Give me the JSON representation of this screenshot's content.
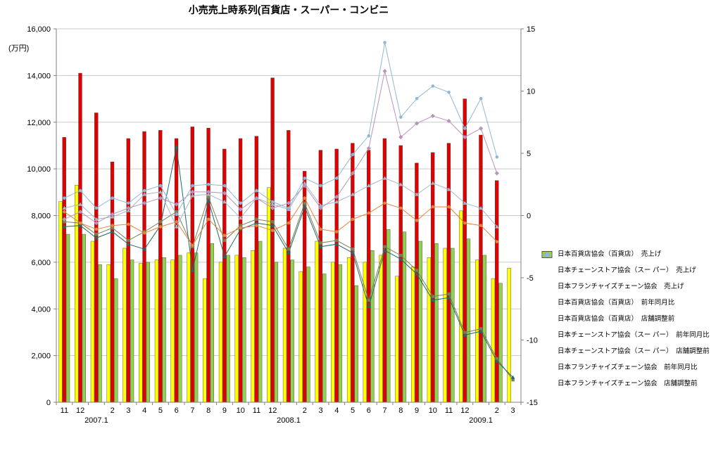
{
  "title": "小売売上時系列(百貨店・スーパー・コンビニ",
  "axis": {
    "left_unit": "(万円)",
    "left_tick_values": [
      0,
      2000,
      4000,
      6000,
      8000,
      10000,
      12000,
      14000,
      16000
    ],
    "left_tick_labels": [
      "0",
      "2,000",
      "4,000",
      "6,000",
      "8,000",
      "10,000",
      "12,000",
      "14,000",
      "16,000"
    ],
    "right_tick_values": [
      15,
      10,
      5,
      0,
      -5,
      -10,
      -15
    ],
    "right_tick_labels": [
      "15",
      "10",
      "5",
      "0",
      "-5",
      "-10",
      "-15"
    ],
    "left_min": 0,
    "left_max": 16000,
    "right_min": -15,
    "right_max": 15
  },
  "chart_data": {
    "type": "bar",
    "subtype": "grouped-bar with 6 overlay lines on secondary axis",
    "title": "小売売上時系列(百貨店・スーパー・コンビニ",
    "ylabel_left": "(万円)",
    "ylim_left": [
      0,
      16000
    ],
    "ylim_right": [
      -15,
      15
    ],
    "grid": "horizontal, every 2000",
    "legend_position": "right",
    "categories": [
      "11",
      "12",
      "2007.1",
      "2",
      "3",
      "4",
      "5",
      "6",
      "7",
      "8",
      "9",
      "10",
      "11",
      "12",
      "2008.1",
      "2",
      "3",
      "4",
      "5",
      "6",
      "7",
      "8",
      "9",
      "10",
      "11",
      "12",
      "2009.1",
      "2",
      "3"
    ],
    "bar_series": [
      {
        "name": "日本百貨店協会（百貨店）　売上げ",
        "color": "#FFFF00",
        "axis": "left",
        "values": [
          8600,
          9300,
          6900,
          5900,
          6600,
          5950,
          6100,
          6100,
          6400,
          5300,
          6000,
          6300,
          6500,
          9200,
          6600,
          5600,
          6900,
          6000,
          6200,
          6000,
          6300,
          5400,
          5800,
          6200,
          6600,
          8200,
          6100,
          5300,
          5750
        ]
      },
      {
        "name": "日本チェーンストア協会（スー パー）　売上げ",
        "color": "#E00000",
        "axis": "left",
        "values": [
          11350,
          14100,
          12400,
          10300,
          11300,
          11600,
          11650,
          11300,
          11800,
          11750,
          10850,
          11300,
          11400,
          13900,
          11650,
          9900,
          10800,
          10850,
          11100,
          10800,
          11300,
          11000,
          10250,
          10700,
          11100,
          13000,
          11450,
          9500,
          null
        ]
      },
      {
        "name": "日本フランチャイズチェーン協会　売上げ",
        "color": "#92D050",
        "axis": "left",
        "values": [
          7200,
          7200,
          5900,
          5300,
          6100,
          6000,
          6200,
          6300,
          6400,
          6800,
          6300,
          6200,
          6900,
          6000,
          6100,
          5800,
          5500,
          5900,
          5000,
          6500,
          7400,
          7300,
          6900,
          6800,
          6600,
          7000,
          6300,
          5100,
          null
        ]
      }
    ],
    "line_series": [
      {
        "name": "日本百貨店協会（百貨店）　前年同月比",
        "color": "#7D7D52",
        "marker": "square",
        "axis": "right",
        "values": [
          -0.5,
          -0.6,
          -1.5,
          -1.0,
          -2.0,
          -1.3,
          -0.5,
          0.3,
          -2.5,
          1.5,
          -2.0,
          -0.8,
          -0.3,
          -0.5,
          -2.7,
          1.0,
          -2.2,
          -2.0,
          -2.7,
          -6.8,
          -2.5,
          -3.2,
          -4.4,
          -6.5,
          -6.3,
          -9.4,
          -9.1,
          -11.5,
          -13.2
        ]
      },
      {
        "name": "日本百貨店協会（百貨店）　店舗調整前",
        "color": "#1F6B6B",
        "marker": "triangle",
        "axis": "right",
        "values": [
          -0.9,
          -0.8,
          -1.8,
          -1.3,
          -2.3,
          -2.7,
          -0.8,
          5.5,
          -4.4,
          1.2,
          -3.3,
          -1.1,
          -0.6,
          -0.8,
          -3.0,
          0.7,
          -2.5,
          -2.3,
          -3.0,
          -7.3,
          -2.8,
          -3.5,
          -4.7,
          -6.8,
          -6.6,
          -9.6,
          -9.3,
          -11.7,
          -13.0
        ]
      },
      {
        "name": "日本チェーンストア協会（スー パー）　前年同月比",
        "color": "#E8833A",
        "marker": "circle",
        "axis": "right",
        "values": [
          0.3,
          -0.6,
          -1.1,
          -0.8,
          -0.7,
          -1.4,
          -0.9,
          -0.5,
          -2.4,
          -0.3,
          -1.6,
          -1.0,
          -0.8,
          -1.2,
          -0.6,
          1.4,
          -1.1,
          -1.3,
          -0.3,
          0.2,
          1.0,
          0.6,
          -0.4,
          0.7,
          0.7,
          -0.6,
          -0.8,
          -2.1,
          null
        ]
      },
      {
        "name": "日本チェーンストア協会（スー パー）　店舗調整前",
        "color": "#A3B8CC",
        "marker": "triangle",
        "axis": "right",
        "values": [
          0.6,
          0.9,
          -0.3,
          -0.1,
          0.4,
          1.7,
          1.9,
          -0.9,
          1.6,
          1.7,
          1.1,
          -0.2,
          1.4,
          0.9,
          0.5,
          2.6,
          0.8,
          1.1,
          1.7,
          2.4,
          3.0,
          2.5,
          1.7,
          2.6,
          2.1,
          1.0,
          0.6,
          -0.9,
          null
        ]
      },
      {
        "name": "日本フランチャイズチェーン協会　前年同月比",
        "color": "#B894BC",
        "marker": "diamond",
        "axis": "right",
        "values": [
          -0.3,
          0.3,
          -0.6,
          0.1,
          0.6,
          1.0,
          1.4,
          0.9,
          1.9,
          1.9,
          1.8,
          0.5,
          1.4,
          0.6,
          1.0,
          2.4,
          0.6,
          1.5,
          3.4,
          5.4,
          11.6,
          6.3,
          7.4,
          8.0,
          7.6,
          6.3,
          7.0,
          3.4,
          null
        ]
      },
      {
        "name": "日本フランチャイズチェーン協会　店舗調整前",
        "color": "#8FB8D8",
        "marker": "circle",
        "axis": "right",
        "values": [
          1.4,
          2.0,
          0.6,
          1.4,
          1.0,
          2.0,
          2.4,
          0.1,
          2.4,
          2.5,
          2.4,
          1.0,
          2.0,
          1.1,
          0.6,
          3.0,
          2.4,
          3.0,
          4.9,
          6.4,
          13.9,
          7.9,
          9.4,
          10.4,
          9.9,
          7.0,
          9.4,
          4.7,
          null
        ]
      }
    ]
  },
  "colors": {
    "grid": "#c9c9c9",
    "axis": "#808080",
    "bar_outline": "#3a3a3a"
  }
}
